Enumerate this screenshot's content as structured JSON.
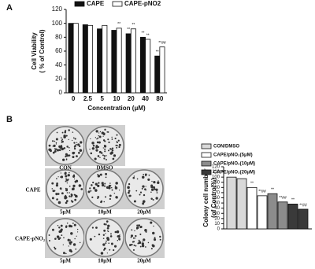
{
  "panel_labels": [
    "A",
    "B"
  ],
  "dish_labels": {
    "columns_top": [
      "CON",
      "DMSO"
    ],
    "rows": [
      "CAPE",
      "CAPE-pNO₂"
    ],
    "concentrations": [
      "5μM",
      "10μM",
      "20μM"
    ]
  },
  "chart_data": [
    {
      "type": "bar",
      "ylabel": [
        "Cell Viability",
        "( % of Control)"
      ],
      "xlabel": "Concentration (μM)",
      "categories": [
        "0",
        "2.5",
        "5",
        "10",
        "20",
        "40",
        "80"
      ],
      "ylim": [
        0,
        120
      ],
      "yticks": [
        0,
        20,
        40,
        60,
        80,
        100,
        120
      ],
      "series": [
        {
          "name": "CAPE",
          "color": "#111111",
          "values": [
            100,
            98,
            92,
            90,
            85,
            80,
            53
          ],
          "annotations": [
            null,
            null,
            null,
            null,
            "**",
            "**",
            "**"
          ]
        },
        {
          "name": "CAPE-pNO2",
          "color": "#ffffff",
          "values": [
            100,
            97,
            97,
            93,
            92,
            77,
            66
          ],
          "annotations": [
            null,
            null,
            null,
            "**",
            "**",
            "**",
            "**##"
          ]
        }
      ]
    },
    {
      "type": "bar",
      "ylabel": [
        "Colony cell number",
        "(of Control%)"
      ],
      "ylim": [
        0,
        120
      ],
      "yticks": [
        0,
        10,
        20,
        30,
        40,
        50,
        60,
        70,
        80,
        90,
        100,
        110,
        120
      ],
      "series": [
        {
          "name": "CON/DMSO",
          "color": "#d9d9d9",
          "values": [
            100,
            97
          ],
          "annotations": [
            null,
            null
          ]
        },
        {
          "name": "CAPE/pNO₂(5μM)",
          "color": "#ffffff",
          "values": [
            80,
            64
          ],
          "annotations": [
            "**",
            "**##"
          ]
        },
        {
          "name": "CAPE/pNO₂(10μM)",
          "color": "#8c8c8c",
          "values": [
            68,
            52
          ],
          "annotations": [
            "**",
            "**##"
          ]
        },
        {
          "name": "CAPE/pNO₂(20μM)",
          "color": "#3a3a3a",
          "values": [
            48,
            38
          ],
          "annotations": [
            "**",
            "**##"
          ]
        }
      ]
    }
  ]
}
